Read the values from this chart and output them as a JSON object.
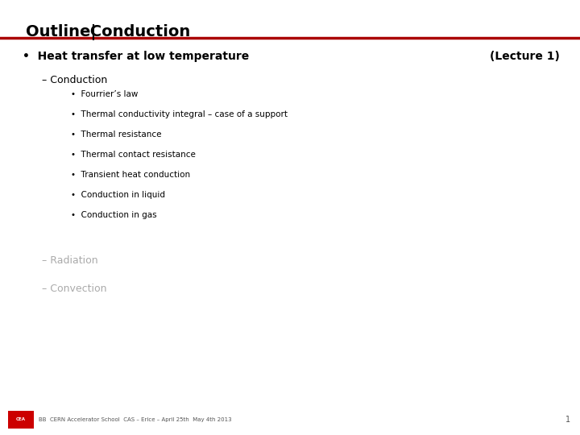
{
  "title": "Outline|  Conduction",
  "bg_color": "#ffffff",
  "title_color": "#000000",
  "separator_color": "#aa0000",
  "bullet1_text": "•  Heat transfer at low temperature",
  "lecture_label": "(Lecture 1)",
  "dash1_text": "– Conduction",
  "sub_bullets": [
    "Fourrier’s law",
    "Thermal conductivity integral – case of a support",
    "Thermal resistance",
    "Thermal contact resistance",
    "Transient heat conduction",
    "Conduction in liquid",
    "Conduction in gas"
  ],
  "dash2_text": "– Radiation",
  "dash3_text": "– Convection",
  "footer_text": "BB  CERN Accelerator School  CAS – Erice – April 25th  May 4th 2013",
  "footer_page": "1",
  "footer_color": "#555555",
  "footer_logo_color": "#cc0000",
  "faded_color": "#aaaaaa",
  "active_color": "#000000",
  "sub_bullet_color": "#000000",
  "title_fontsize": 14,
  "bullet1_fontsize": 10,
  "dash_fontsize": 9,
  "sub_fontsize": 7.5,
  "footer_fontsize": 5
}
